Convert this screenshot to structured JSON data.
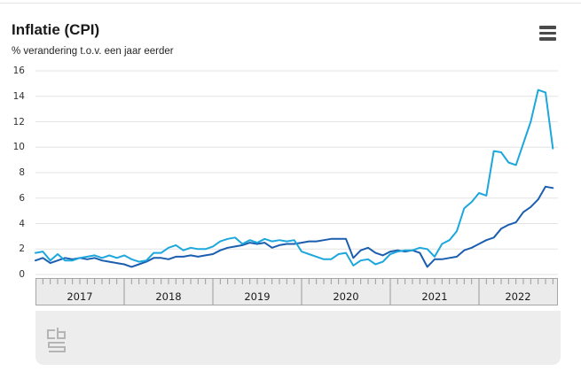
{
  "header": {
    "title": "Inflatie (CPI)",
    "subtitle": "% verandering t.o.v. een jaar eerder",
    "menu_icon": "hamburger-menu-icon"
  },
  "footer": {
    "logo": "cbs-logo"
  },
  "colors": {
    "light_blue_line": "#1ca7dd",
    "dark_blue_line": "#1b5eb0",
    "gridline": "#e3e3e3",
    "axis_band_bg": "#ebebeb",
    "axis_band_border": "#a6a6a6",
    "axis_tick": "#9a9a9a"
  },
  "chart_data": {
    "type": "line",
    "title": "Inflatie (CPI)",
    "subtitle": "% verandering t.o.v. een jaar eerder",
    "grid": "horizontal",
    "legend": "none",
    "ylim": [
      0,
      16
    ],
    "y_ticks": [
      16,
      14,
      12,
      10,
      8,
      6,
      4,
      2,
      0
    ],
    "x_year_labels": [
      "2017",
      "2018",
      "2019",
      "2020",
      "2021",
      "2022"
    ],
    "x_monthly_from": "2017-01",
    "x_monthly_to": "2022-11",
    "series": [
      {
        "name": "lichtblauwe-lijn",
        "color": "#1ca7dd",
        "values": [
          1.7,
          1.8,
          1.1,
          1.6,
          1.1,
          1.1,
          1.3,
          1.4,
          1.5,
          1.3,
          1.5,
          1.3,
          1.5,
          1.2,
          1.0,
          1.1,
          1.7,
          1.7,
          2.1,
          2.3,
          1.9,
          2.1,
          2.0,
          2.0,
          2.2,
          2.6,
          2.8,
          2.9,
          2.4,
          2.7,
          2.5,
          2.8,
          2.6,
          2.7,
          2.6,
          2.7,
          1.8,
          1.6,
          1.4,
          1.2,
          1.2,
          1.6,
          1.7,
          0.7,
          1.1,
          1.2,
          0.8,
          1.0,
          1.6,
          1.8,
          1.9,
          1.9,
          2.1,
          2.0,
          1.4,
          2.4,
          2.7,
          3.4,
          5.2,
          5.7,
          6.4,
          6.2,
          9.7,
          9.6,
          8.8,
          8.6,
          10.3,
          12.0,
          14.5,
          14.3,
          9.9
        ]
      },
      {
        "name": "donkerblauwe-lijn",
        "color": "#1b5eb0",
        "values": [
          1.1,
          1.3,
          0.9,
          1.1,
          1.3,
          1.2,
          1.3,
          1.2,
          1.3,
          1.1,
          1.0,
          0.9,
          0.8,
          0.6,
          0.8,
          1.0,
          1.3,
          1.3,
          1.2,
          1.4,
          1.4,
          1.5,
          1.4,
          1.5,
          1.6,
          1.9,
          2.1,
          2.2,
          2.3,
          2.5,
          2.4,
          2.5,
          2.1,
          2.3,
          2.4,
          2.4,
          2.5,
          2.6,
          2.6,
          2.7,
          2.8,
          2.8,
          2.8,
          1.3,
          1.9,
          2.1,
          1.7,
          1.5,
          1.8,
          1.9,
          1.8,
          1.9,
          1.7,
          0.6,
          1.2,
          1.2,
          1.3,
          1.4,
          1.9,
          2.1,
          2.4,
          2.7,
          2.9,
          3.6,
          3.9,
          4.1,
          4.9,
          5.3,
          5.9,
          6.9,
          6.8
        ]
      }
    ]
  }
}
